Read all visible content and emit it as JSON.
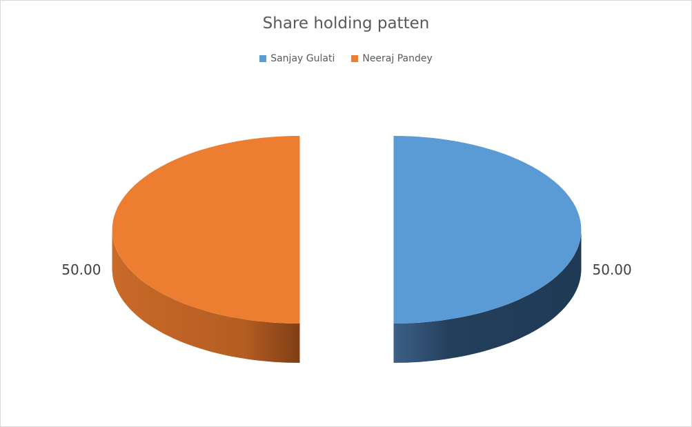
{
  "chart_data": {
    "type": "pie",
    "style": "3d-exploded",
    "title": "Share holding patten",
    "legend_position": "top",
    "series": [
      {
        "name": "Sanjay Gulati",
        "value": 50.0,
        "label": "50.00",
        "color": "#5B9BD5",
        "side_color": "#223D5A"
      },
      {
        "name": "Neeraj Pandey",
        "value": 50.0,
        "label": "50.00",
        "color": "#ED7D31",
        "side_color": "#B45A1E"
      }
    ]
  }
}
